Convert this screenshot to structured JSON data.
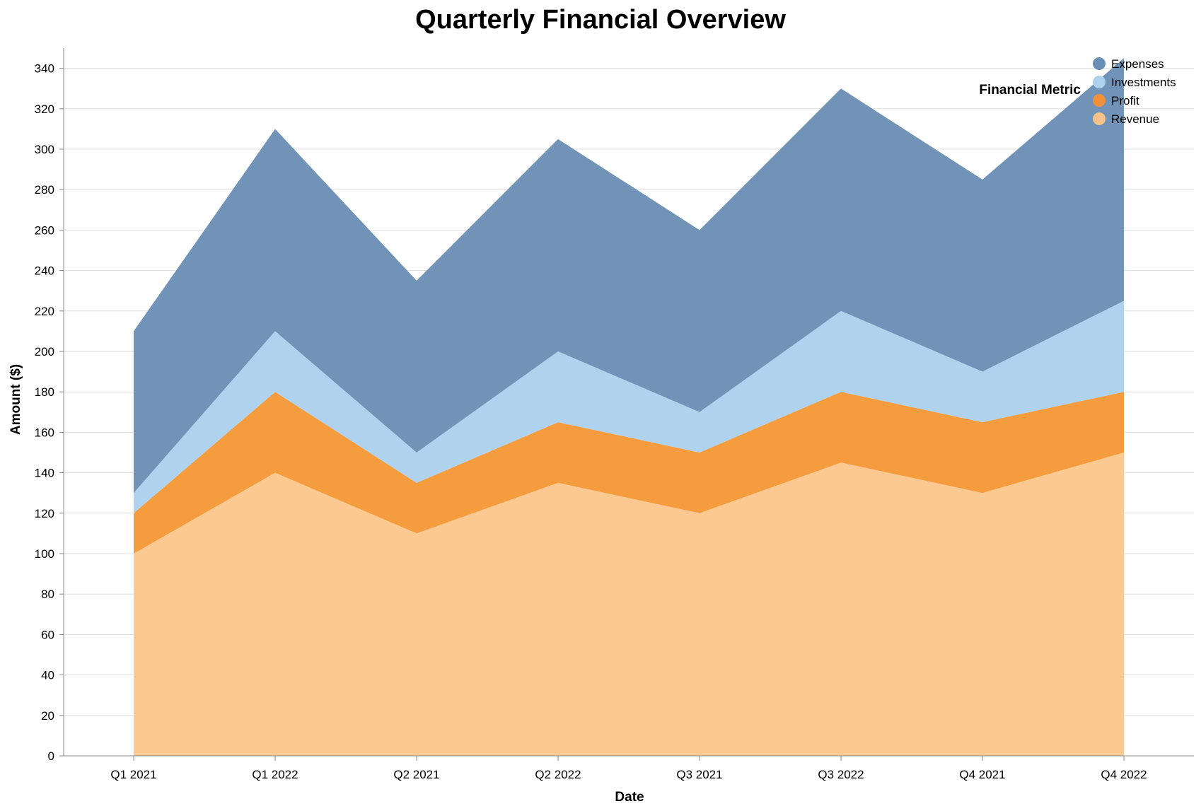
{
  "chart_data": {
    "type": "area",
    "stacked": true,
    "title": "Quarterly Financial Overview",
    "xlabel": "Date",
    "ylabel": "Amount ($)",
    "categories": [
      "Q1 2021",
      "Q1 2022",
      "Q2 2021",
      "Q2 2022",
      "Q3 2021",
      "Q3 2022",
      "Q4 2021",
      "Q4 2022"
    ],
    "ylim": [
      0,
      350
    ],
    "yticks": [
      0,
      20,
      40,
      60,
      80,
      100,
      120,
      140,
      160,
      180,
      200,
      220,
      240,
      260,
      280,
      300,
      320,
      340
    ],
    "grid": true,
    "legend": {
      "title": "Financial Metric",
      "position": "top-right",
      "items": [
        "Expenses",
        "Investments",
        "Profit",
        "Revenue"
      ]
    },
    "series": [
      {
        "name": "Revenue",
        "color": "#fdc992",
        "values": [
          100,
          140,
          110,
          135,
          120,
          145,
          130,
          150
        ]
      },
      {
        "name": "Profit",
        "color": "#f59d3e",
        "values": [
          20,
          40,
          25,
          30,
          30,
          35,
          35,
          30
        ]
      },
      {
        "name": "Investments",
        "color": "#afd3ee",
        "values": [
          10,
          30,
          15,
          35,
          20,
          40,
          25,
          45
        ]
      },
      {
        "name": "Expenses",
        "color": "#7093b7",
        "values": [
          80,
          100,
          85,
          105,
          90,
          110,
          95,
          120
        ]
      }
    ],
    "legend_colors": {
      "Expenses": "#6a8fb5",
      "Investments": "#acd2ee",
      "Profit": "#f0913a",
      "Revenue": "#f5c38a"
    }
  }
}
